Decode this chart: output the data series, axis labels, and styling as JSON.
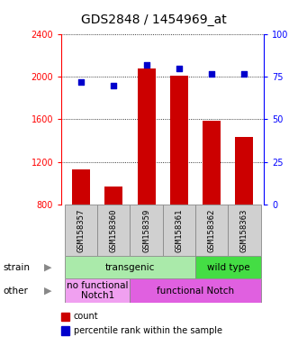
{
  "title": "GDS2848 / 1454969_at",
  "samples": [
    "GSM158357",
    "GSM158360",
    "GSM158359",
    "GSM158361",
    "GSM158362",
    "GSM158363"
  ],
  "counts": [
    1130,
    970,
    2080,
    2010,
    1590,
    1430
  ],
  "percentiles": [
    72,
    70,
    82,
    80,
    77,
    77
  ],
  "ylim_left": [
    800,
    2400
  ],
  "ylim_right": [
    0,
    100
  ],
  "yticks_left": [
    800,
    1200,
    1600,
    2000,
    2400
  ],
  "yticks_right": [
    0,
    25,
    50,
    75,
    100
  ],
  "bar_color": "#cc0000",
  "dot_color": "#0000cc",
  "bar_bottom": 800,
  "strain_labels": [
    {
      "text": "transgenic",
      "start": 0,
      "end": 3,
      "color": "#aaeaaa"
    },
    {
      "text": "wild type",
      "start": 4,
      "end": 5,
      "color": "#44dd44"
    }
  ],
  "other_labels": [
    {
      "text": "no functional\nNotch1",
      "start": 0,
      "end": 1,
      "color": "#f0a0f0"
    },
    {
      "text": "functional Notch",
      "start": 2,
      "end": 5,
      "color": "#e060e0"
    }
  ],
  "sample_bg_color": "#d0d0d0",
  "legend_count_color": "#cc0000",
  "legend_percentile_color": "#0000cc",
  "legend_count_label": "count",
  "legend_percentile_label": "percentile rank within the sample",
  "strain_row_label": "strain",
  "other_row_label": "other",
  "title_fontsize": 10,
  "tick_fontsize": 7,
  "sample_label_fontsize": 6.5,
  "annot_fontsize": 7.5,
  "legend_fontsize": 7
}
